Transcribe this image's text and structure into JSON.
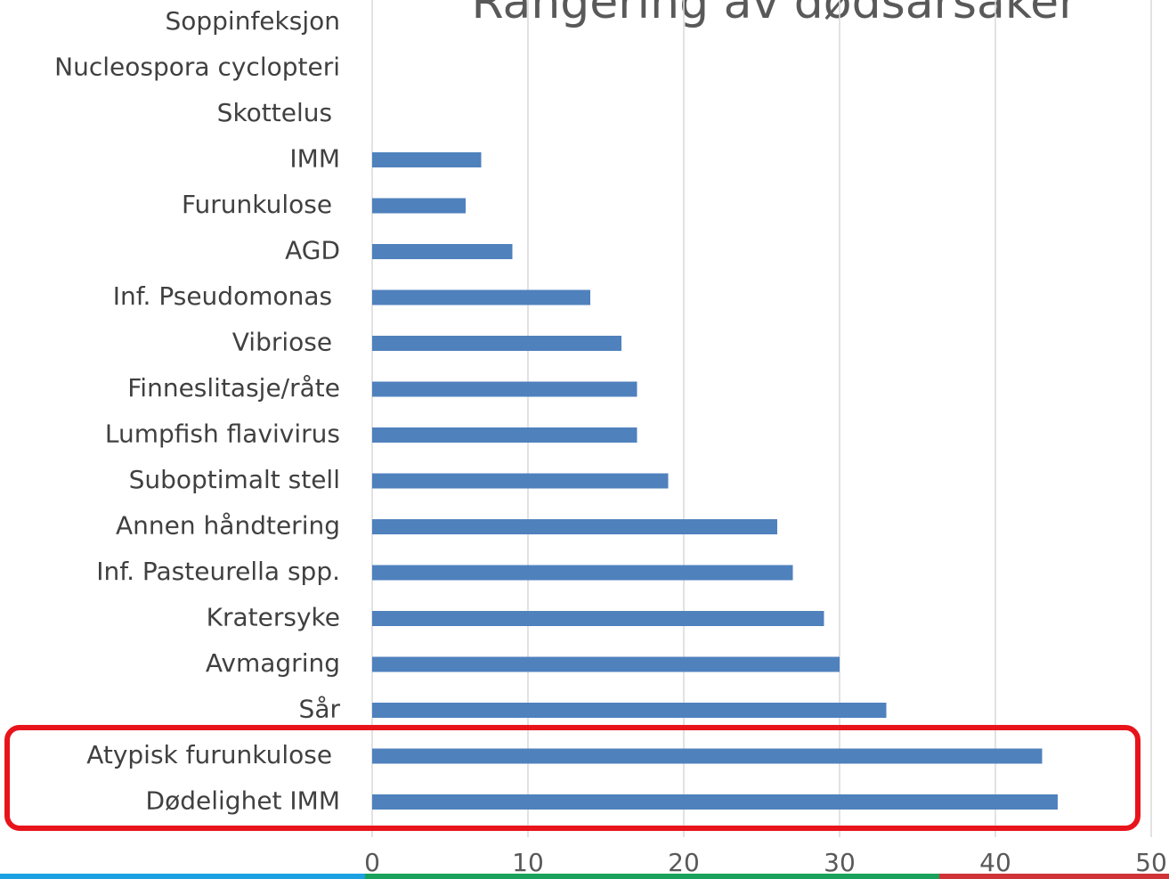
{
  "chart_data": {
    "type": "bar",
    "orientation": "horizontal",
    "title": "Rangering av dødsårsaker",
    "categories": [
      "Soppinfeksjon",
      "Nucleospora cyclopteri",
      "Skottelus ",
      "IMM",
      "Furunkulose ",
      "AGD",
      "Inf. Pseudomonas ",
      "Vibriose ",
      "Finneslitasje/råte",
      "Lumpfish flavivirus",
      "Suboptimalt stell",
      "Annen håndtering",
      "Inf. Pasteurella spp.",
      "Kratersyke",
      "Avmagring",
      "Sår",
      "Atypisk furunkulose ",
      "Dødelighet IMM"
    ],
    "values": [
      0,
      0,
      0,
      7,
      6,
      9,
      14,
      16,
      17,
      17,
      19,
      26,
      27,
      29,
      30,
      33,
      43,
      44
    ],
    "color": "#4f81bd",
    "xlim": [
      0,
      50
    ],
    "xticks": [
      0,
      10,
      20,
      30,
      40,
      50
    ],
    "grid": true
  }
}
